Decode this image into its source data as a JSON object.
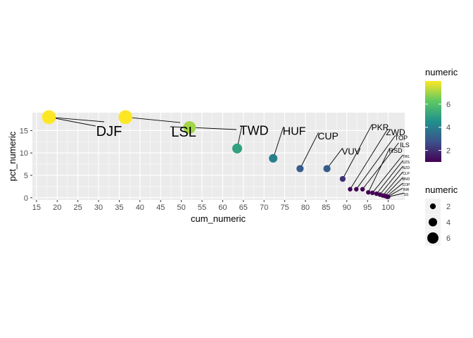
{
  "chart_data": {
    "type": "scatter",
    "xlabel": "cum_numeric",
    "ylabel": "pct_numeric",
    "xlim": [
      14,
      104
    ],
    "ylim": [
      -0.5,
      19
    ],
    "x_ticks": [
      15,
      20,
      25,
      30,
      35,
      40,
      45,
      50,
      55,
      60,
      65,
      70,
      75,
      80,
      85,
      90,
      95,
      100
    ],
    "y_ticks": [
      0,
      5,
      10,
      15
    ],
    "grid": true,
    "color_legend": {
      "title": "numeric",
      "ticks": [
        2,
        4,
        6
      ],
      "low": "#440154",
      "mid": "#21908C",
      "high": "#FDE725",
      "range": [
        1,
        8
      ]
    },
    "size_legend": {
      "title": "numeric",
      "values": [
        2,
        4,
        6
      ]
    },
    "points": [
      {
        "label": "DJF",
        "x": 18.0,
        "y": 18.0,
        "numeric": 8
      },
      {
        "label": "",
        "x": 36.5,
        "y": 18.0,
        "numeric": 8
      },
      {
        "label": "LSL",
        "x": 52.0,
        "y": 15.7,
        "numeric": 7
      },
      {
        "label": "TWD",
        "x": 63.5,
        "y": 11.0,
        "numeric": 5
      },
      {
        "label": "HUF",
        "x": 72.2,
        "y": 8.8,
        "numeric": 4
      },
      {
        "label": "CUP",
        "x": 78.7,
        "y": 6.5,
        "numeric": 3
      },
      {
        "label": "VUV",
        "x": 85.2,
        "y": 6.5,
        "numeric": 3
      },
      {
        "label": "PKR",
        "x": 89.0,
        "y": 4.2,
        "numeric": 2
      },
      {
        "label": "ZWD",
        "x": 90.8,
        "y": 1.9,
        "numeric": 1
      },
      {
        "label": "TOP",
        "x": 92.3,
        "y": 1.9,
        "numeric": 1
      },
      {
        "label": "ILS",
        "x": 93.8,
        "y": 1.9,
        "numeric": 1
      },
      {
        "label": "RSD",
        "x": 95.2,
        "y": 1.2,
        "numeric": 1
      },
      {
        "label": "TWL",
        "x": 96.2,
        "y": 1.1,
        "numeric": 1
      },
      {
        "label": "UZS",
        "x": 97.2,
        "y": 0.9,
        "numeric": 1
      },
      {
        "label": "NZD",
        "x": 98.0,
        "y": 0.7,
        "numeric": 1
      },
      {
        "label": "CLP",
        "x": 98.7,
        "y": 0.5,
        "numeric": 1
      },
      {
        "label": "BND",
        "x": 99.2,
        "y": 0.4,
        "numeric": 1
      },
      {
        "label": "COP",
        "x": 99.6,
        "y": 0.3,
        "numeric": 1
      },
      {
        "label": "INR",
        "x": 99.8,
        "y": 0.2,
        "numeric": 1
      },
      {
        "label": "SS",
        "x": 100.0,
        "y": 0.2,
        "numeric": 1
      }
    ]
  }
}
